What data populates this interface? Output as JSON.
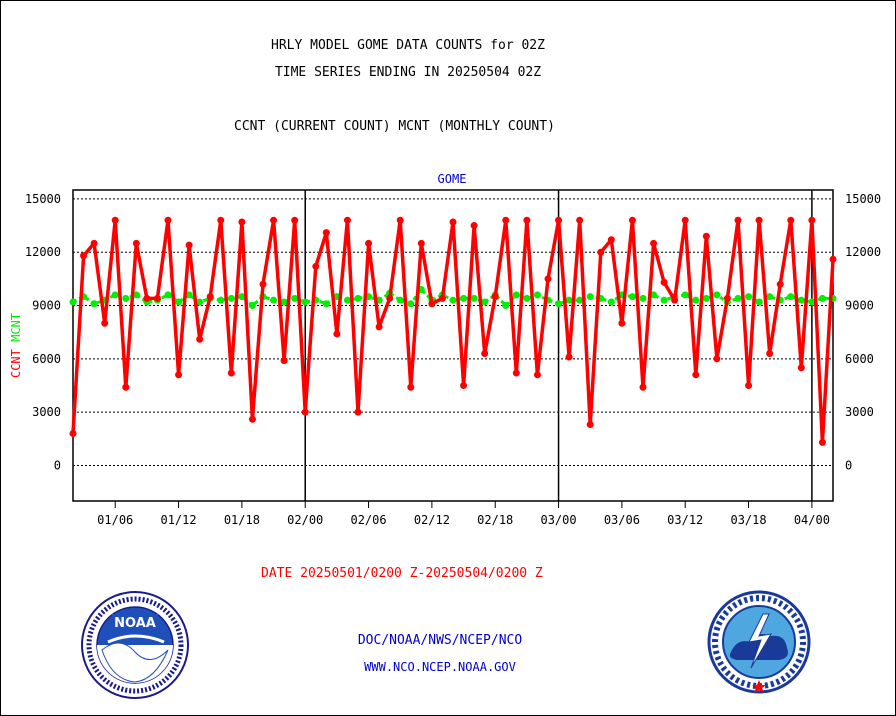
{
  "titles": {
    "line1": "HRLY MODEL GOME DATA COUNTS for 02Z",
    "line2": "TIME SERIES ENDING IN 20250504 02Z",
    "line3": "CCNT (CURRENT COUNT) MCNT (MONTHLY COUNT)"
  },
  "panel_label": "GOME",
  "date_range": "DATE 20250501/0200 Z-20250504/0200 Z",
  "footer": {
    "line1": "DOC/NOAA/NWS/NCEP/NCO",
    "line2": "WWW.NCO.NCEP.NOAA.GOV"
  },
  "logos": {
    "left": "noaa-logo",
    "right": "national-weather-service-logo"
  },
  "colors": {
    "ccnt": "#ff0000",
    "mcnt": "#00ee00",
    "axis": "#000000",
    "grid": "#000000",
    "panel_label": "#0000cc"
  },
  "chart_data": {
    "type": "line",
    "ylabel_parts": [
      {
        "text": "CCNT",
        "color": "#ff0000"
      },
      {
        "text": "MCNT",
        "color": "#00ee00"
      }
    ],
    "ylim": [
      -2000,
      15500
    ],
    "yticks": [
      0,
      3000,
      6000,
      9000,
      12000,
      15000
    ],
    "y_tick_labels": [
      "0",
      "3000",
      "6000",
      "9000",
      "12000",
      "15000"
    ],
    "grid": "horizontal dotted",
    "x_start_hour": 2,
    "x_end_hour": 74,
    "x_ticks": [
      {
        "hour": 6,
        "label": "01/06"
      },
      {
        "hour": 12,
        "label": "01/12"
      },
      {
        "hour": 18,
        "label": "01/18"
      },
      {
        "hour": 24,
        "label": "02/00"
      },
      {
        "hour": 30,
        "label": "02/06"
      },
      {
        "hour": 36,
        "label": "02/12"
      },
      {
        "hour": 42,
        "label": "02/18"
      },
      {
        "hour": 48,
        "label": "03/00"
      },
      {
        "hour": 54,
        "label": "03/06"
      },
      {
        "hour": 60,
        "label": "03/12"
      },
      {
        "hour": 66,
        "label": "03/18"
      },
      {
        "hour": 72,
        "label": "04/00"
      }
    ],
    "day_boundaries": [
      24,
      48,
      72
    ],
    "series": [
      {
        "name": "CCNT",
        "color": "#ff0000",
        "values": [
          1800,
          11800,
          12500,
          8000,
          13800,
          4400,
          12500,
          9400,
          9400,
          13800,
          5100,
          12400,
          7100,
          9500,
          13800,
          5200,
          13700,
          2600,
          10200,
          13800,
          5900,
          13800,
          3000,
          11200,
          13100,
          7400,
          13800,
          3000,
          12500,
          7800,
          9400,
          13800,
          4400,
          12500,
          9100,
          9400,
          13700,
          4500,
          13500,
          6300,
          9500,
          13800,
          5200,
          13800,
          5100,
          10500,
          13800,
          6100,
          13800,
          2300,
          12000,
          12700,
          8000,
          13800,
          4400,
          12500,
          10300,
          9300,
          13800,
          5100,
          12900,
          6000,
          9400,
          13800,
          4500,
          13800,
          6300,
          10200,
          13800,
          5500,
          13800,
          1300,
          11600
        ]
      },
      {
        "name": "MCNT",
        "color": "#00ee00",
        "values": [
          9200,
          9500,
          9100,
          9300,
          9600,
          9400,
          9600,
          9200,
          9300,
          9600,
          9200,
          9600,
          9200,
          9400,
          9300,
          9400,
          9500,
          9000,
          9500,
          9300,
          9200,
          9400,
          9200,
          9300,
          9100,
          9500,
          9300,
          9400,
          9500,
          9300,
          9700,
          9300,
          9100,
          9900,
          9300,
          9600,
          9300,
          9400,
          9400,
          9200,
          9600,
          9000,
          9600,
          9400,
          9600,
          9300,
          9100,
          9300,
          9300,
          9500,
          9400,
          9200,
          9600,
          9500,
          9400,
          9600,
          9300,
          9500,
          9600,
          9300,
          9400,
          9600,
          9200,
          9400,
          9500,
          9200,
          9500,
          9300,
          9500,
          9300,
          9200,
          9400,
          9400
        ]
      }
    ]
  }
}
